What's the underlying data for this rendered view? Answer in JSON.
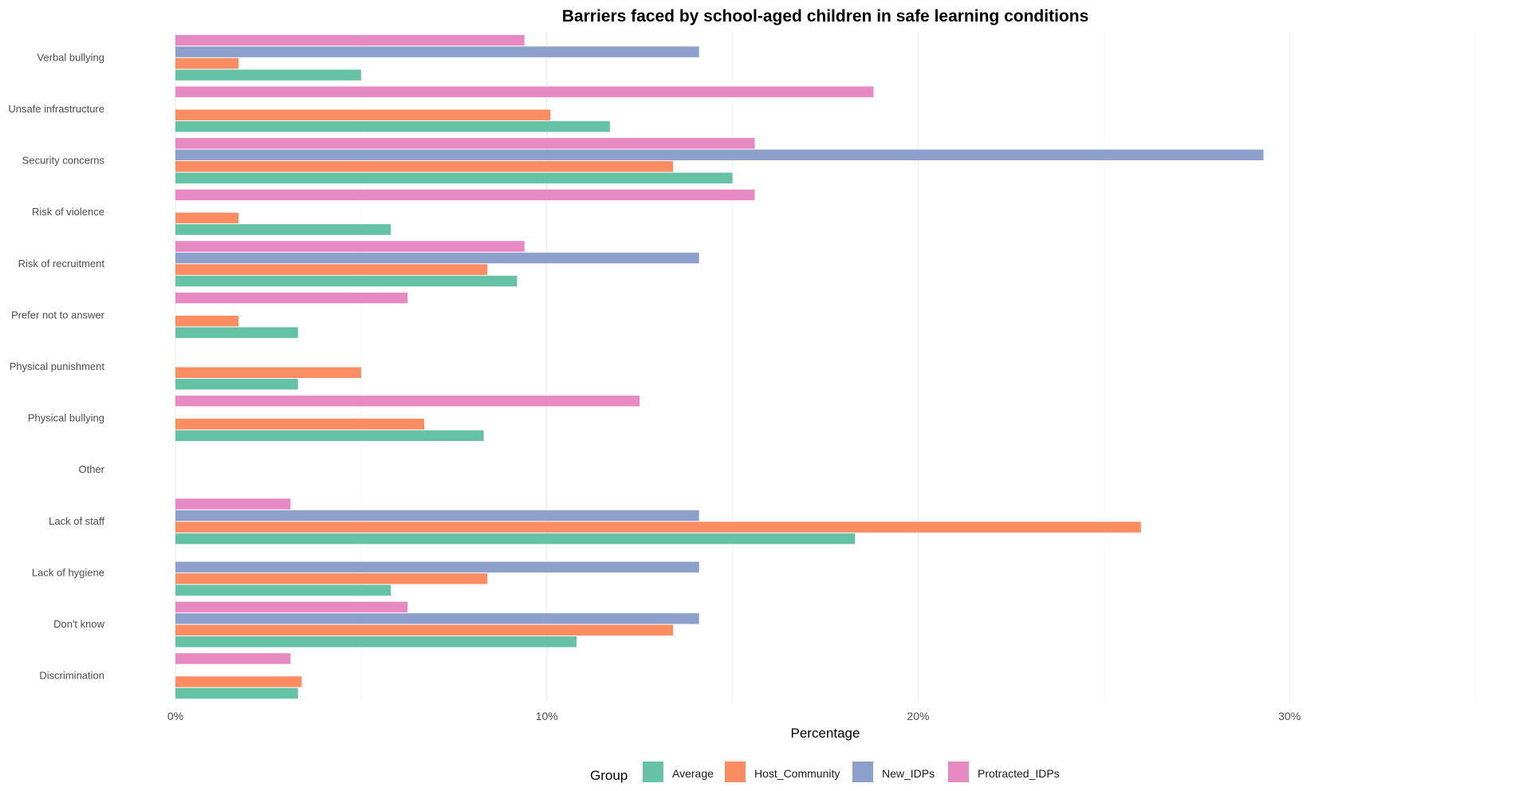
{
  "chart_data": {
    "type": "bar",
    "orientation": "horizontal",
    "title": "Barriers faced by school-aged children in safe learning conditions",
    "xlabel": "Percentage",
    "ylabel": "",
    "xlim": [
      0,
      35
    ],
    "x_ticks": [
      0,
      10,
      20,
      30
    ],
    "x_tick_labels": [
      "0%",
      "10%",
      "20%",
      "30%"
    ],
    "grid": "vertical major and minor",
    "legend_title": "Group",
    "legend_position": "bottom",
    "categories": [
      "Verbal bullying",
      "Unsafe infrastructure",
      "Security concerns",
      "Risk of violence",
      "Risk of recruitment",
      "Prefer not to answer",
      "Physical punishment",
      "Physical bullying",
      "Other",
      "Lack of staff",
      "Lack of hygiene",
      "Don't know",
      "Discrimination"
    ],
    "series": [
      {
        "name": "Average",
        "color": "#66c2a5",
        "values": [
          5.0,
          11.7,
          15.0,
          5.8,
          9.2,
          3.3,
          3.3,
          8.3,
          null,
          18.3,
          5.8,
          10.8,
          3.3
        ]
      },
      {
        "name": "Host_Community",
        "color": "#fc8d62",
        "values": [
          1.7,
          10.1,
          13.4,
          1.7,
          8.4,
          1.7,
          5.0,
          6.7,
          null,
          26.0,
          8.4,
          13.4,
          3.4
        ]
      },
      {
        "name": "New_IDPs",
        "color": "#8da0cb",
        "values": [
          14.1,
          null,
          29.3,
          null,
          14.1,
          null,
          null,
          null,
          null,
          14.1,
          14.1,
          14.1,
          null
        ]
      },
      {
        "name": "Protracted_IDPs",
        "color": "#e78ac3",
        "values": [
          9.4,
          18.8,
          15.6,
          15.6,
          9.4,
          6.25,
          null,
          12.5,
          null,
          3.1,
          null,
          6.25,
          3.1
        ]
      }
    ]
  }
}
